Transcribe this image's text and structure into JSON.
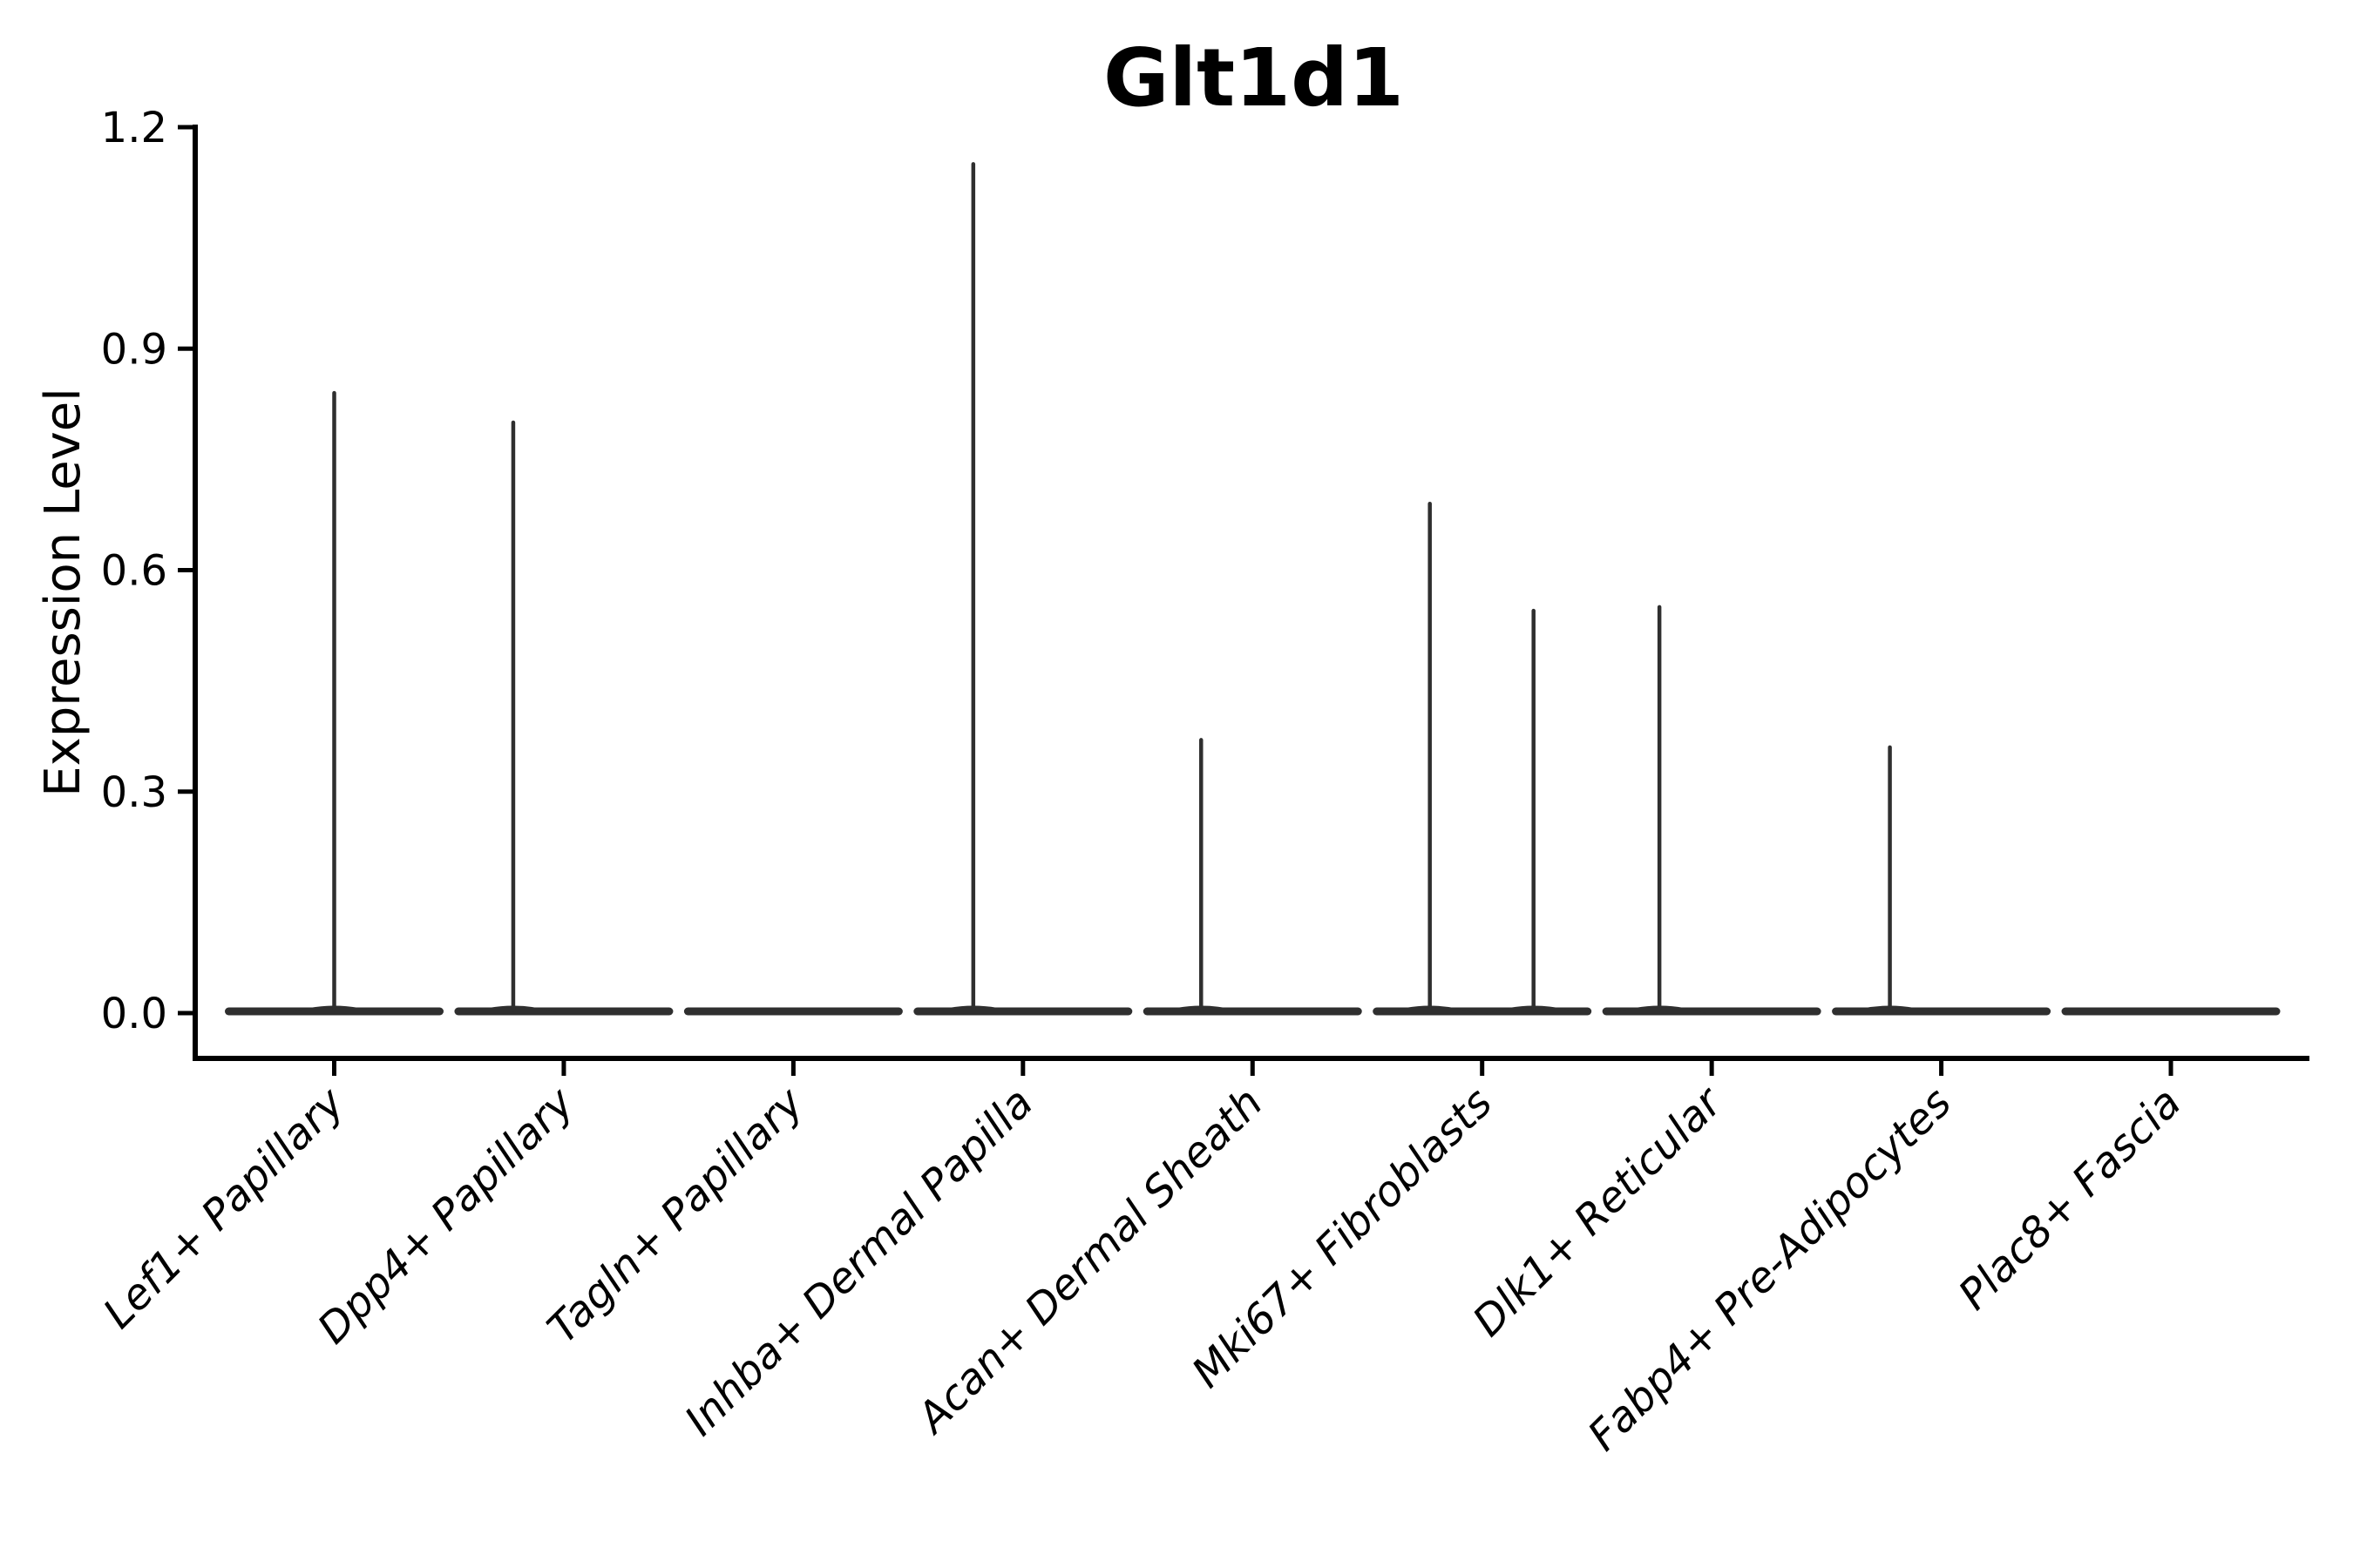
{
  "chart_data": {
    "type": "violin",
    "title": "Glt1d1",
    "ylabel": "Expression Level",
    "xlabel": "",
    "ylim": [
      -0.058,
      1.2
    ],
    "yticks": [
      "0.0",
      "0.3",
      "0.6",
      "0.9",
      "1.2"
    ],
    "grid": false,
    "legend": "none",
    "categories": [
      "Lef1+ Papillary",
      "Dpp4+ Papillary",
      "Tagln+ Papillary",
      "Inhba+ Dermal Papilla",
      "Acan+ Dermal Sheath",
      "Mki67+ Fibroblasts",
      "Dlk1+ Reticular",
      "Fabp4+ Pre-Adipocytes",
      "Plac8+ Fascia"
    ],
    "violins": [
      {
        "max_expression": 0.84,
        "spikes": [
          {
            "offset": 0,
            "value": 0.84
          }
        ]
      },
      {
        "max_expression": 0.8,
        "spikes": [
          {
            "offset": -58,
            "value": 0.8
          }
        ]
      },
      {
        "max_expression": 0.0,
        "spikes": []
      },
      {
        "max_expression": 1.15,
        "spikes": [
          {
            "offset": -57,
            "value": 1.15
          }
        ]
      },
      {
        "max_expression": 0.37,
        "spikes": [
          {
            "offset": -59,
            "value": 0.37
          }
        ]
      },
      {
        "max_expression": 0.69,
        "spikes": [
          {
            "offset": -60,
            "value": 0.69
          },
          {
            "offset": 59,
            "value": 0.545
          }
        ]
      },
      {
        "max_expression": 0.55,
        "spikes": [
          {
            "offset": -60,
            "value": 0.55
          }
        ]
      },
      {
        "max_expression": 0.36,
        "spikes": [
          {
            "offset": -59,
            "value": 0.36
          }
        ]
      },
      {
        "max_expression": 0.0,
        "spikes": []
      }
    ],
    "colors": {
      "violin": "#2f2f2f",
      "axis": "#000000",
      "text": "#000000",
      "background": "#ffffff"
    }
  }
}
